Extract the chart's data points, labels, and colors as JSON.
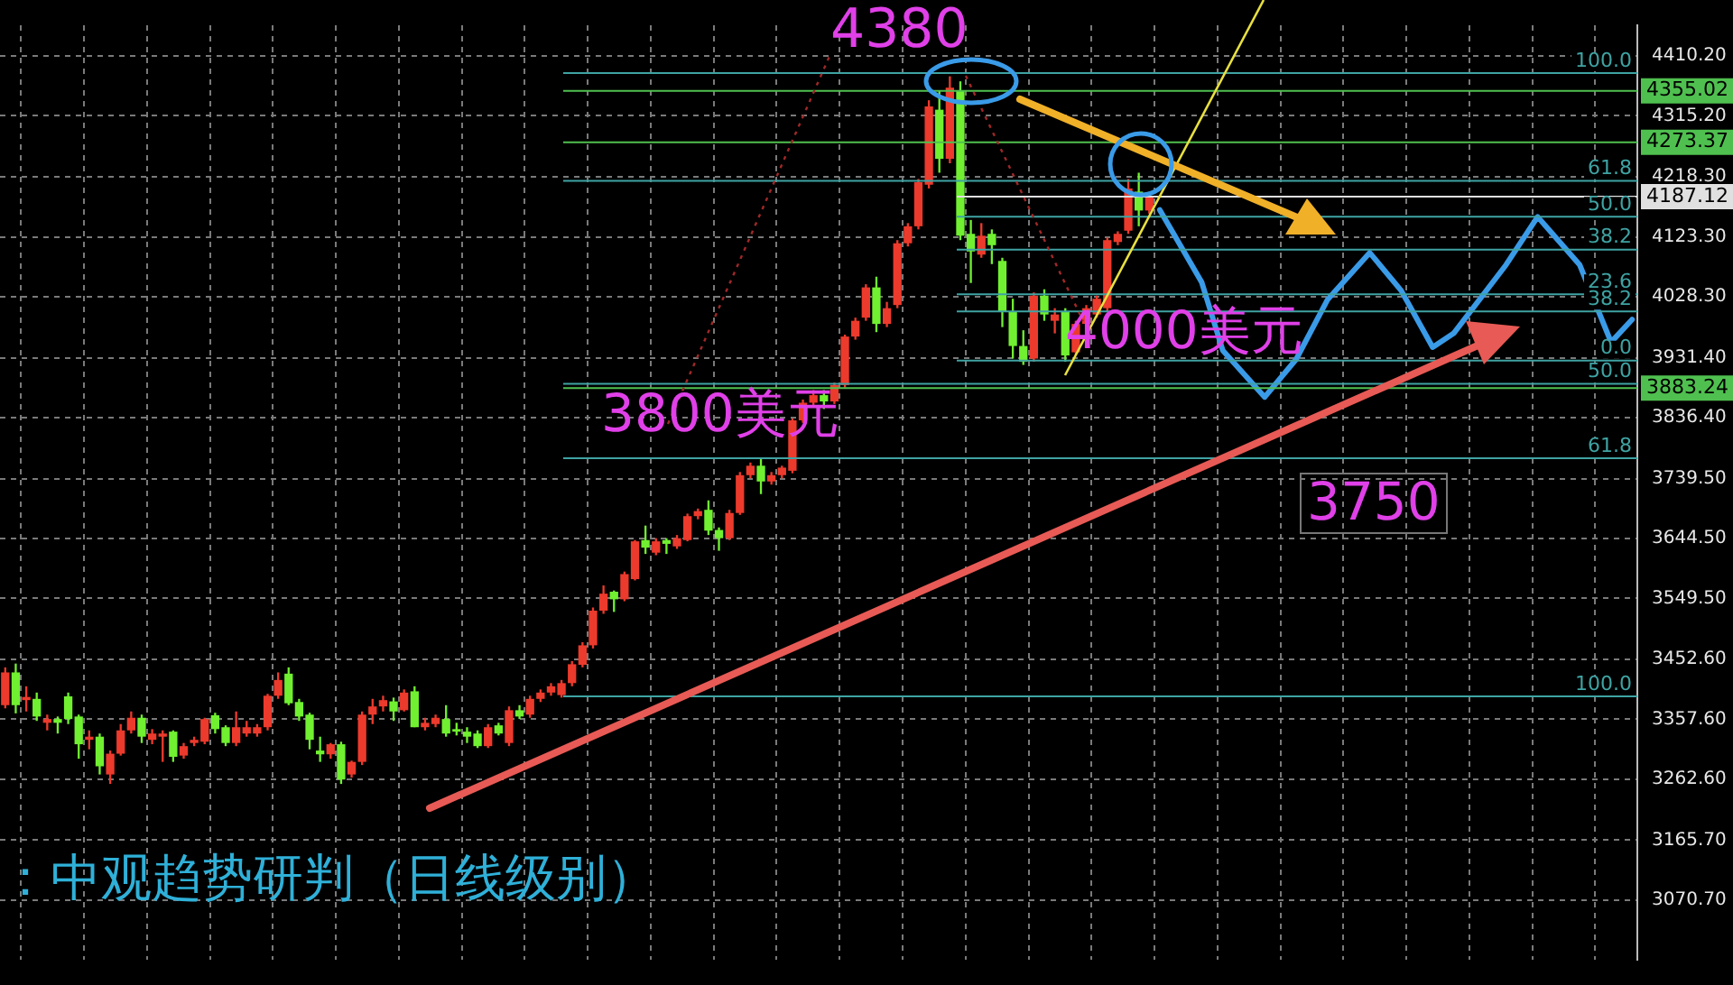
{
  "chart_data": {
    "type": "candlestick",
    "categories": [
      null,
      null,
      null,
      null,
      null,
      null,
      null,
      null,
      null,
      null,
      null,
      null,
      null,
      null,
      null,
      null,
      null,
      null,
      null,
      null,
      null,
      null,
      null,
      null,
      null,
      null,
      null,
      null,
      null,
      null,
      null,
      null,
      null,
      null,
      null,
      null,
      null,
      null,
      null,
      null,
      null,
      null,
      null,
      null,
      null,
      null,
      null,
      null,
      null,
      null,
      null,
      null,
      null,
      null,
      null,
      null,
      null,
      null,
      null,
      null,
      null,
      null,
      null,
      null,
      null,
      null,
      null,
      null,
      null,
      null,
      null,
      null,
      null,
      null,
      null,
      null,
      null,
      null,
      null,
      null,
      null,
      null,
      null,
      null,
      null,
      null,
      null,
      null,
      null,
      null,
      null,
      null,
      null,
      null,
      null,
      null,
      null,
      null,
      null,
      null,
      null,
      null,
      null,
      null,
      null,
      null,
      null,
      null,
      null,
      null,
      null,
      null,
      null,
      null,
      null,
      null,
      null,
      null,
      null,
      null,
      null,
      null,
      null,
      null,
      null,
      null,
      null,
      null,
      null,
      null,
      null,
      null,
      null,
      null,
      null,
      null,
      null,
      null,
      null,
      null,
      null,
      null,
      null,
      null,
      null,
      null,
      null,
      null,
      null,
      null,
      null,
      null,
      null,
      null,
      null,
      null
    ],
    "ohlc": [
      [
        3380,
        3440,
        3375,
        3432
      ],
      [
        3432,
        3446,
        3367,
        3380
      ],
      [
        3388,
        3410,
        3370,
        3393
      ],
      [
        3390,
        3400,
        3355,
        3362
      ],
      [
        3352,
        3365,
        3340,
        3358
      ],
      [
        3358,
        3362,
        3335,
        3352
      ],
      [
        3394,
        3400,
        3350,
        3358
      ],
      [
        3362,
        3365,
        3295,
        3318
      ],
      [
        3325,
        3340,
        3310,
        3330
      ],
      [
        3330,
        3335,
        3270,
        3283
      ],
      [
        3270,
        3308,
        3255,
        3303
      ],
      [
        3303,
        3350,
        3300,
        3340
      ],
      [
        3340,
        3370,
        3335,
        3360
      ],
      [
        3360,
        3365,
        3320,
        3330
      ],
      [
        3325,
        3342,
        3318,
        3335
      ],
      [
        3330,
        3340,
        3290,
        3335
      ],
      [
        3338,
        3340,
        3290,
        3298
      ],
      [
        3300,
        3320,
        3295,
        3315
      ],
      [
        3320,
        3330,
        3315,
        3325
      ],
      [
        3322,
        3360,
        3318,
        3358
      ],
      [
        3364,
        3368,
        3335,
        3342
      ],
      [
        3345,
        3348,
        3315,
        3320
      ],
      [
        3320,
        3370,
        3315,
        3345
      ],
      [
        3335,
        3355,
        3330,
        3345
      ],
      [
        3335,
        3350,
        3330,
        3345
      ],
      [
        3345,
        3398,
        3340,
        3395
      ],
      [
        3395,
        3432,
        3390,
        3420
      ],
      [
        3430,
        3440,
        3380,
        3383
      ],
      [
        3385,
        3390,
        3355,
        3362
      ],
      [
        3365,
        3368,
        3310,
        3325
      ],
      [
        3308,
        3330,
        3290,
        3302
      ],
      [
        3302,
        3320,
        3295,
        3318
      ],
      [
        3318,
        3322,
        3255,
        3262
      ],
      [
        3270,
        3292,
        3265,
        3290
      ],
      [
        3290,
        3370,
        3285,
        3365
      ],
      [
        3365,
        3390,
        3350,
        3378
      ],
      [
        3378,
        3395,
        3370,
        3388
      ],
      [
        3386,
        3392,
        3355,
        3370
      ],
      [
        3372,
        3405,
        3370,
        3400
      ],
      [
        3402,
        3410,
        3345,
        3345
      ],
      [
        3345,
        3360,
        3340,
        3352
      ],
      [
        3350,
        3365,
        3345,
        3360
      ],
      [
        3358,
        3380,
        3330,
        3335
      ],
      [
        3342,
        3352,
        3332,
        3338
      ],
      [
        3338,
        3345,
        3320,
        3330
      ],
      [
        3335,
        3340,
        3312,
        3315
      ],
      [
        3315,
        3350,
        3312,
        3345
      ],
      [
        3348,
        3352,
        3332,
        3335
      ],
      [
        3320,
        3378,
        3315,
        3372
      ],
      [
        3372,
        3380,
        3358,
        3362
      ],
      [
        3365,
        3395,
        3360,
        3390
      ],
      [
        3390,
        3405,
        3385,
        3400
      ],
      [
        3400,
        3415,
        3395,
        3410
      ],
      [
        3396,
        3420,
        3392,
        3415
      ],
      [
        3415,
        3450,
        3410,
        3445
      ],
      [
        3444,
        3480,
        3440,
        3475
      ],
      [
        3475,
        3535,
        3470,
        3530
      ],
      [
        3530,
        3570,
        3525,
        3557
      ],
      [
        3560,
        3562,
        3528,
        3548
      ],
      [
        3548,
        3592,
        3545,
        3588
      ],
      [
        3580,
        3642,
        3578,
        3640
      ],
      [
        3642,
        3665,
        3620,
        3630
      ],
      [
        3622,
        3645,
        3618,
        3640
      ],
      [
        3642,
        3645,
        3620,
        3636
      ],
      [
        3632,
        3650,
        3628,
        3645
      ],
      [
        3642,
        3684,
        3640,
        3680
      ],
      [
        3680,
        3692,
        3675,
        3688
      ],
      [
        3690,
        3705,
        3650,
        3657
      ],
      [
        3658,
        3662,
        3625,
        3645
      ],
      [
        3645,
        3690,
        3642,
        3685
      ],
      [
        3685,
        3750,
        3682,
        3745
      ],
      [
        3745,
        3765,
        3740,
        3760
      ],
      [
        3760,
        3772,
        3715,
        3735
      ],
      [
        3735,
        3750,
        3730,
        3745
      ],
      [
        3745,
        3760,
        3740,
        3757
      ],
      [
        3752,
        3835,
        3748,
        3832
      ],
      [
        3832,
        3865,
        3828,
        3860
      ],
      [
        3860,
        3880,
        3855,
        3872
      ],
      [
        3872,
        3880,
        3850,
        3862
      ],
      [
        3862,
        3892,
        3858,
        3888
      ],
      [
        3888,
        3968,
        3884,
        3965
      ],
      [
        3965,
        3995,
        3960,
        3990
      ],
      [
        3995,
        4048,
        3990,
        4043
      ],
      [
        4043,
        4060,
        3972,
        3985
      ],
      [
        3985,
        4020,
        3980,
        4010
      ],
      [
        4015,
        4118,
        4010,
        4113
      ],
      [
        4113,
        4145,
        4108,
        4140
      ],
      [
        4140,
        4215,
        4135,
        4210
      ],
      [
        4206,
        4340,
        4200,
        4330
      ],
      [
        4325,
        4355,
        4225,
        4247
      ],
      [
        4247,
        4378,
        4240,
        4360
      ],
      [
        4355,
        4370,
        4118,
        4125
      ],
      [
        4128,
        4150,
        4050,
        4100
      ],
      [
        4095,
        4145,
        4090,
        4125
      ],
      [
        4128,
        4135,
        4080,
        4110
      ],
      [
        4085,
        4090,
        3980,
        4005
      ],
      [
        4005,
        4025,
        3930,
        3950
      ],
      [
        3950,
        3975,
        3920,
        3925
      ],
      [
        3930,
        4035,
        3925,
        4030
      ],
      [
        4030,
        4040,
        3990,
        4000
      ],
      [
        3990,
        4010,
        3970,
        4000
      ],
      [
        4005,
        4010,
        3925,
        3935
      ],
      [
        3940,
        3990,
        3935,
        3985
      ],
      [
        3985,
        4015,
        3980,
        4010
      ],
      [
        4000,
        4030,
        3995,
        4025
      ],
      [
        4010,
        4122,
        4005,
        4118
      ],
      [
        4115,
        4132,
        4110,
        4128
      ],
      [
        4133,
        4215,
        4128,
        4200
      ],
      [
        4195,
        4225,
        4140,
        4165
      ],
      [
        4165,
        4190,
        4160,
        4187
      ],
      null,
      null,
      null,
      null,
      null,
      null,
      null,
      null,
      null,
      null,
      null,
      null,
      null,
      null,
      null,
      null,
      null,
      null,
      null,
      null,
      null,
      null,
      null,
      null,
      null,
      null,
      null,
      null,
      null,
      null,
      null,
      null,
      null,
      null,
      null,
      null,
      null,
      null,
      null,
      null,
      null,
      null,
      null,
      null,
      null,
      null
    ],
    "ylim": [
      2976,
      4459
    ],
    "yticks": [
      {
        "value": 3070.7,
        "label": "3070.70"
      },
      {
        "value": 3165.7,
        "label": "3165.70"
      },
      {
        "value": 3262.6,
        "label": "3262.60"
      },
      {
        "value": 3357.6,
        "label": "3357.60"
      },
      {
        "value": 3452.6,
        "label": "3452.60"
      },
      {
        "value": 3549.5,
        "label": "3549.50"
      },
      {
        "value": 3644.5,
        "label": "3644.50"
      },
      {
        "value": 3739.5,
        "label": "3739.50"
      },
      {
        "value": 3836.4,
        "label": "3836.40"
      },
      {
        "value": 3931.4,
        "label": "3931.40"
      },
      {
        "value": 4028.3,
        "label": "4028.30"
      },
      {
        "value": 4123.3,
        "label": "4123.30"
      },
      {
        "value": 4218.3,
        "label": "4218.30"
      },
      {
        "value": 4315.2,
        "label": "4315.20"
      },
      {
        "value": 4410.2,
        "label": "4410.20"
      }
    ],
    "tick_labels": "y",
    "grid": true,
    "legend": false,
    "series": [
      {
        "type": "line",
        "color": "#3a9be8",
        "values": [
          null,
          null,
          null,
          null,
          null,
          null,
          null,
          null,
          null,
          null,
          null,
          null,
          null,
          null,
          null,
          null,
          null,
          null,
          null,
          null,
          null,
          null,
          null,
          null,
          null,
          null,
          null,
          null,
          null,
          null,
          null,
          null,
          null,
          null,
          null,
          null,
          null,
          null,
          null,
          null,
          null,
          null,
          null,
          null,
          null,
          null,
          null,
          null,
          null,
          null,
          null,
          null,
          null,
          null,
          null,
          null,
          null,
          null,
          null,
          null,
          null,
          null,
          null,
          null,
          null,
          null,
          null,
          null,
          null,
          null,
          null,
          null,
          null,
          null,
          null,
          null,
          null,
          null,
          null,
          null,
          null,
          null,
          null,
          null,
          null,
          null,
          null,
          null,
          null,
          null,
          null,
          null,
          null,
          null,
          null,
          null,
          null,
          null,
          null,
          null,
          null,
          null,
          null,
          null,
          null,
          null,
          null,
          null,
          null,
          null,
          4166,
          null,
          null,
          null,
          4051,
          null,
          3943,
          null,
          null,
          null,
          3869,
          null,
          null,
          3929,
          null,
          null,
          4024,
          null,
          null,
          null,
          4098,
          null,
          null,
          4038,
          null,
          null,
          3948,
          null,
          3970,
          null,
          null,
          null,
          null,
          4079,
          null,
          null,
          4155,
          null,
          null,
          null,
          4079,
          null,
          null,
          3956,
          null,
          3992
        ]
      }
    ],
    "ref_lines": [
      {
        "axis": "y",
        "value": 4383,
        "color": "#3fa3a3"
      },
      {
        "axis": "y",
        "value": 4355.02,
        "label": "4355.02",
        "color": "#4fc04f"
      },
      {
        "axis": "y",
        "value": 4273.37,
        "label": "4273.37",
        "color": "#4fc04f"
      },
      {
        "axis": "y",
        "value": 4212,
        "color": "#3fa3a3"
      },
      {
        "axis": "y",
        "value": 4187.12,
        "label": "4187.12",
        "color": "#e0e0e0"
      },
      {
        "axis": "y",
        "value": 4155,
        "color": "#3fa3a3"
      },
      {
        "axis": "y",
        "value": 4103,
        "color": "#3fa3a3"
      },
      {
        "axis": "y",
        "value": 4032,
        "color": "#3fa3a3"
      },
      {
        "axis": "y",
        "value": 4005,
        "color": "#3fa3a3"
      },
      {
        "axis": "y",
        "value": 3927,
        "color": "#3fa3a3"
      },
      {
        "axis": "y",
        "value": 3883.24,
        "label": "3883.24",
        "color": "#4fc04f"
      },
      {
        "axis": "y",
        "value": 3890,
        "color": "#3fa3a3"
      },
      {
        "axis": "y",
        "value": 3772,
        "color": "#3fa3a3"
      },
      {
        "axis": "y",
        "value": 3394,
        "color": "#3fa3a3"
      }
    ],
    "annotations": [
      "4380",
      "3800美元",
      "4000美元",
      "3750",
      "：中观趋势研判（日线级别）",
      {
        "text": "100.0",
        "y": 4383
      },
      {
        "text": "61.8",
        "y": 4212
      },
      {
        "text": "50.0",
        "y": 4155
      },
      {
        "text": "38.2",
        "y": 4103
      },
      {
        "text": "23.6",
        "y": 4032
      },
      {
        "text": "38.2",
        "y": 4005
      },
      {
        "text": "0.0",
        "y": 3927
      },
      {
        "text": "50.0",
        "y": 3890
      },
      {
        "text": "61.8",
        "y": 3772
      },
      {
        "text": "100.0",
        "y": 3394
      }
    ]
  }
}
